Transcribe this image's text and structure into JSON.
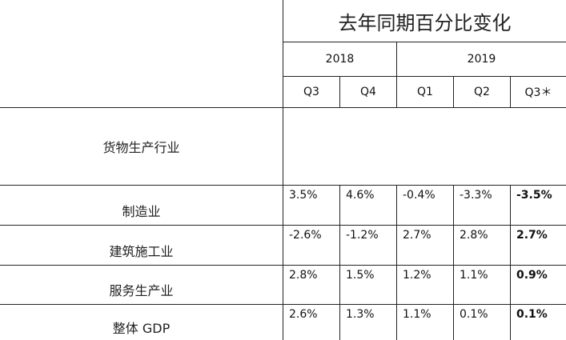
{
  "table": {
    "title": "去年同期百分比变化",
    "years": [
      "2018",
      "2019"
    ],
    "quarters": [
      "Q3",
      "Q4",
      "Q1",
      "Q2",
      "Q3＊"
    ],
    "section_label": "货物生产行业",
    "rows": [
      {
        "label": "制造业",
        "values": [
          "3.5%",
          "4.6%",
          "-0.4%",
          "-3.3%",
          "-3.5%"
        ]
      },
      {
        "label": "建筑施工业",
        "values": [
          "-2.6%",
          "-1.2%",
          "2.7%",
          "2.8%",
          "2.7%"
        ]
      },
      {
        "label": "服务生产业",
        "values": [
          "2.8%",
          "1.5%",
          "1.2%",
          "1.1%",
          "0.9%"
        ]
      },
      {
        "label": "整体 GDP",
        "values": [
          "2.6%",
          "1.3%",
          "1.1%",
          "0.1%",
          "0.1%"
        ]
      }
    ]
  }
}
